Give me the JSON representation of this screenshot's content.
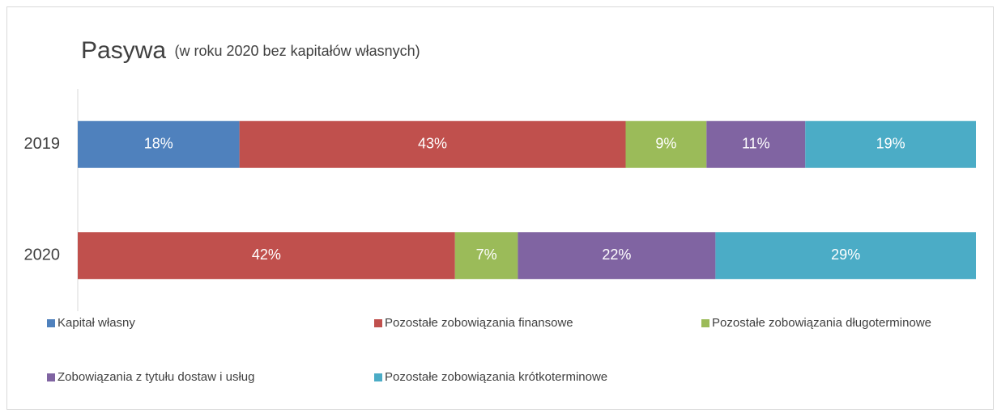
{
  "chart_data": {
    "type": "stacked-bar-horizontal",
    "title": "Pasywa",
    "subtitle": "(w roku 2020 bez kapitałów własnych)",
    "categories": [
      "2019",
      "2020"
    ],
    "series": [
      {
        "name": "Kapitał własny",
        "color": "#4f81bd",
        "values": [
          18,
          null
        ],
        "value_labels": [
          "18%",
          null
        ]
      },
      {
        "name": "Pozostałe zobowiązania finansowe",
        "color": "#c0504d",
        "values": [
          43,
          42
        ],
        "value_labels": [
          "43%",
          "42%"
        ]
      },
      {
        "name": "Pozostałe zobowiązania długoterminowe",
        "color": "#9bbb59",
        "values": [
          9,
          7
        ],
        "value_labels": [
          "9%",
          "7%"
        ]
      },
      {
        "name": "Zobowiązania z tytułu dostaw i usług",
        "color": "#8064a2",
        "values": [
          11,
          22
        ],
        "value_labels": [
          "11%",
          "22%"
        ]
      },
      {
        "name": "Pozostałe zobowiązania krótkoterminowe",
        "color": "#4bacc6",
        "values": [
          19,
          29
        ],
        "value_labels": [
          "19%",
          "29%"
        ]
      }
    ],
    "xlim": [
      0,
      100
    ]
  }
}
